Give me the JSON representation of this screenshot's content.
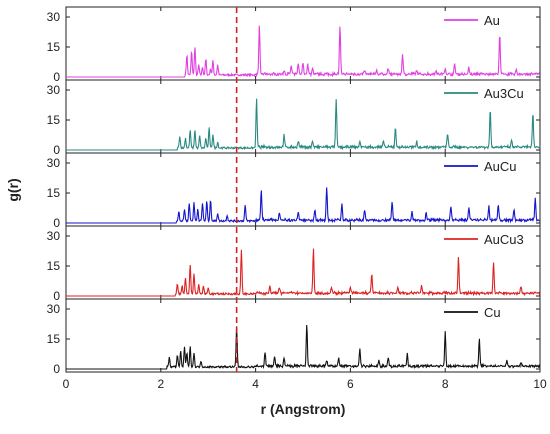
{
  "chart_data": {
    "type": "line",
    "xlabel": "r (Angstrom)",
    "ylabel": "g(r)",
    "xlim": [
      0,
      10
    ],
    "x_ticks": [
      0,
      2,
      4,
      6,
      8,
      10
    ],
    "x_tick_labels": [
      "0",
      "2",
      "4",
      "6",
      "8",
      "10"
    ],
    "y_ticks": [
      0,
      15,
      30
    ],
    "y_tick_labels": [
      "0",
      "15",
      "30"
    ],
    "ylim": [
      0,
      32
    ],
    "legend_position": "top-right",
    "reference_line": {
      "x": 3.6,
      "style": "dashed",
      "color": "#cc2222"
    },
    "panels": [
      {
        "name": "Au",
        "color": "#e040e0",
        "peaks": [
          [
            2.55,
            10
          ],
          [
            2.65,
            12
          ],
          [
            2.72,
            14
          ],
          [
            2.8,
            5
          ],
          [
            2.88,
            4
          ],
          [
            2.95,
            8
          ],
          [
            3.05,
            3
          ],
          [
            3.1,
            7
          ],
          [
            3.2,
            5
          ],
          [
            4.08,
            24
          ],
          [
            4.6,
            2
          ],
          [
            4.75,
            4
          ],
          [
            4.9,
            5
          ],
          [
            5.0,
            6
          ],
          [
            5.1,
            5
          ],
          [
            5.2,
            3
          ],
          [
            5.78,
            24
          ],
          [
            6.3,
            2
          ],
          [
            6.55,
            2
          ],
          [
            6.8,
            3
          ],
          [
            7.1,
            10
          ],
          [
            7.4,
            2
          ],
          [
            7.8,
            2
          ],
          [
            8.0,
            3
          ],
          [
            8.2,
            5
          ],
          [
            8.5,
            3
          ],
          [
            9.15,
            20
          ],
          [
            9.5,
            2
          ]
        ]
      },
      {
        "name": "Au3Cu",
        "color": "#2a8a80",
        "peaks": [
          [
            2.4,
            6
          ],
          [
            2.52,
            5
          ],
          [
            2.62,
            9
          ],
          [
            2.72,
            9
          ],
          [
            2.82,
            6
          ],
          [
            2.95,
            5
          ],
          [
            3.02,
            10
          ],
          [
            3.1,
            7
          ],
          [
            3.2,
            3
          ],
          [
            4.02,
            24
          ],
          [
            4.6,
            6
          ],
          [
            4.9,
            3
          ],
          [
            5.2,
            3
          ],
          [
            5.7,
            24
          ],
          [
            6.2,
            3
          ],
          [
            6.7,
            3
          ],
          [
            6.95,
            10
          ],
          [
            7.4,
            3
          ],
          [
            8.05,
            7
          ],
          [
            8.95,
            19
          ],
          [
            9.4,
            3
          ],
          [
            9.85,
            17
          ]
        ]
      },
      {
        "name": "AuCu",
        "color": "#1515cc",
        "peaks": [
          [
            2.38,
            5
          ],
          [
            2.5,
            6
          ],
          [
            2.6,
            9
          ],
          [
            2.7,
            9
          ],
          [
            2.78,
            6
          ],
          [
            2.88,
            9
          ],
          [
            2.97,
            10
          ],
          [
            3.05,
            11
          ],
          [
            3.2,
            4
          ],
          [
            3.4,
            3
          ],
          [
            3.78,
            8
          ],
          [
            4.12,
            15
          ],
          [
            4.5,
            4
          ],
          [
            4.9,
            4
          ],
          [
            5.25,
            5
          ],
          [
            5.5,
            16
          ],
          [
            5.82,
            8
          ],
          [
            6.3,
            5
          ],
          [
            6.88,
            9
          ],
          [
            7.3,
            4
          ],
          [
            7.6,
            4
          ],
          [
            8.12,
            7
          ],
          [
            8.5,
            7
          ],
          [
            8.92,
            7
          ],
          [
            9.12,
            8
          ],
          [
            9.45,
            5
          ],
          [
            9.9,
            11
          ]
        ]
      },
      {
        "name": "AuCu3",
        "color": "#dd2222",
        "peaks": [
          [
            2.35,
            5
          ],
          [
            2.45,
            4
          ],
          [
            2.52,
            8
          ],
          [
            2.62,
            15
          ],
          [
            2.7,
            10
          ],
          [
            2.8,
            5
          ],
          [
            2.9,
            4
          ],
          [
            3.0,
            3
          ],
          [
            3.7,
            22
          ],
          [
            4.3,
            4
          ],
          [
            4.5,
            3
          ],
          [
            5.22,
            22
          ],
          [
            5.6,
            3
          ],
          [
            6.0,
            3
          ],
          [
            6.45,
            10
          ],
          [
            7.0,
            3
          ],
          [
            7.5,
            4
          ],
          [
            8.28,
            18
          ],
          [
            9.02,
            15
          ],
          [
            9.6,
            3
          ]
        ]
      },
      {
        "name": "Cu",
        "color": "#111111",
        "peaks": [
          [
            2.18,
            5
          ],
          [
            2.35,
            6
          ],
          [
            2.42,
            8
          ],
          [
            2.5,
            10
          ],
          [
            2.55,
            7
          ],
          [
            2.62,
            10
          ],
          [
            2.7,
            7
          ],
          [
            2.85,
            3
          ],
          [
            3.6,
            20
          ],
          [
            4.2,
            7
          ],
          [
            4.4,
            5
          ],
          [
            4.6,
            4
          ],
          [
            5.08,
            21
          ],
          [
            5.5,
            3
          ],
          [
            5.75,
            4
          ],
          [
            6.2,
            9
          ],
          [
            6.6,
            3
          ],
          [
            6.8,
            4
          ],
          [
            7.2,
            6
          ],
          [
            8.0,
            17
          ],
          [
            8.72,
            14
          ],
          [
            9.3,
            3
          ],
          [
            9.6,
            2
          ]
        ]
      }
    ]
  }
}
